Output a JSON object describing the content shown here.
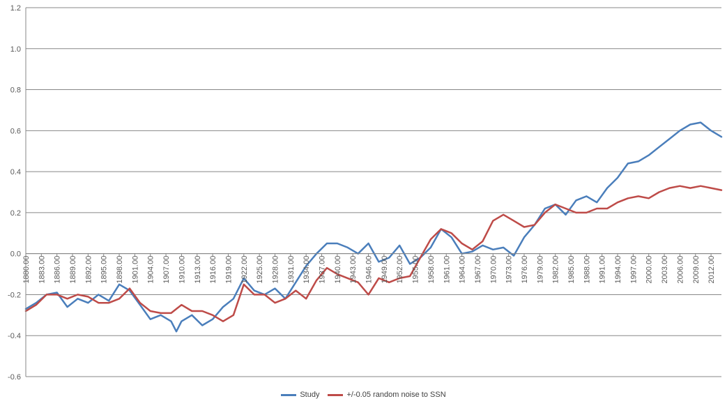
{
  "chart_data": {
    "type": "line",
    "title": "",
    "xlabel": "",
    "ylabel": "",
    "ylim": [
      -0.6,
      1.2
    ],
    "y_ticks": [
      "1.2",
      "1.0",
      "0.8",
      "0.6",
      "0.4",
      "0.2",
      "0.0",
      "-0.2",
      "-0.4",
      "-0.6"
    ],
    "y_tick_values": [
      1.2,
      1.0,
      0.8,
      0.6,
      0.4,
      0.2,
      0.0,
      -0.2,
      -0.4,
      -0.6
    ],
    "x_tick_labels": [
      "1880.00",
      "1883.00",
      "1886.00",
      "1889.00",
      "1892.00",
      "1895.00",
      "1898.00",
      "1901.00",
      "1904.00",
      "1907.00",
      "1910.00",
      "1913.00",
      "1916.00",
      "1919.00",
      "1922.00",
      "1925.00",
      "1928.00",
      "1931.00",
      "1934.00",
      "1937.00",
      "1940.00",
      "1943.00",
      "1946.00",
      "1949.00",
      "1952.00",
      "1955.00",
      "1958.00",
      "1961.00",
      "1964.00",
      "1967.00",
      "1970.00",
      "1973.00",
      "1976.00",
      "1979.00",
      "1982.00",
      "1985.00",
      "1988.00",
      "1991.00",
      "1994.00",
      "1997.00",
      "2000.00",
      "2003.00",
      "2006.00",
      "2009.00",
      "2012.00"
    ],
    "xlim": [
      1880,
      2014
    ],
    "grid": true,
    "legend_position": "bottom",
    "series": [
      {
        "name": "Study",
        "color": "#4a7ebb",
        "x": [
          1880,
          1882,
          1884,
          1886,
          1888,
          1890,
          1892,
          1894,
          1896,
          1898,
          1900,
          1902,
          1904,
          1906,
          1908,
          1909,
          1910,
          1912,
          1914,
          1916,
          1918,
          1920,
          1922,
          1924,
          1926,
          1928,
          1930,
          1932,
          1934,
          1936,
          1938,
          1940,
          1942,
          1944,
          1946,
          1948,
          1950,
          1952,
          1954,
          1956,
          1958,
          1960,
          1962,
          1964,
          1966,
          1968,
          1970,
          1972,
          1974,
          1976,
          1978,
          1980,
          1982,
          1984,
          1986,
          1988,
          1990,
          1992,
          1994,
          1996,
          1998,
          2000,
          2002,
          2004,
          2006,
          2008,
          2010,
          2012,
          2014
        ],
        "values": [
          -0.27,
          -0.24,
          -0.2,
          -0.19,
          -0.26,
          -0.22,
          -0.24,
          -0.2,
          -0.23,
          -0.15,
          -0.18,
          -0.25,
          -0.32,
          -0.3,
          -0.33,
          -0.38,
          -0.33,
          -0.3,
          -0.35,
          -0.32,
          -0.26,
          -0.22,
          -0.12,
          -0.18,
          -0.2,
          -0.17,
          -0.22,
          -0.14,
          -0.06,
          0.0,
          0.05,
          0.05,
          0.03,
          0.0,
          0.05,
          -0.04,
          -0.02,
          0.04,
          -0.05,
          -0.02,
          0.03,
          0.12,
          0.08,
          0.0,
          0.01,
          0.04,
          0.02,
          0.03,
          -0.01,
          0.08,
          0.14,
          0.22,
          0.24,
          0.19,
          0.26,
          0.28,
          0.25,
          0.32,
          0.37,
          0.44,
          0.45,
          0.48,
          0.52,
          0.56,
          0.6,
          0.63,
          0.64,
          0.6,
          0.57
        ]
      },
      {
        "name": "+/-0.05 random noise to SSN",
        "color": "#be4b48",
        "x": [
          1880,
          1882,
          1884,
          1886,
          1888,
          1890,
          1892,
          1894,
          1896,
          1898,
          1900,
          1902,
          1904,
          1906,
          1908,
          1910,
          1912,
          1914,
          1916,
          1918,
          1920,
          1922,
          1924,
          1926,
          1928,
          1930,
          1932,
          1934,
          1936,
          1938,
          1940,
          1942,
          1944,
          1946,
          1948,
          1950,
          1952,
          1954,
          1956,
          1958,
          1960,
          1962,
          1964,
          1966,
          1968,
          1970,
          1972,
          1974,
          1976,
          1978,
          1980,
          1982,
          1984,
          1986,
          1988,
          1990,
          1992,
          1994,
          1996,
          1998,
          2000,
          2002,
          2004,
          2006,
          2008,
          2010,
          2012,
          2014
        ],
        "values": [
          -0.28,
          -0.25,
          -0.2,
          -0.2,
          -0.22,
          -0.2,
          -0.21,
          -0.24,
          -0.24,
          -0.22,
          -0.17,
          -0.24,
          -0.28,
          -0.29,
          -0.29,
          -0.25,
          -0.28,
          -0.28,
          -0.3,
          -0.33,
          -0.3,
          -0.15,
          -0.2,
          -0.2,
          -0.24,
          -0.22,
          -0.18,
          -0.22,
          -0.13,
          -0.07,
          -0.1,
          -0.12,
          -0.14,
          -0.2,
          -0.12,
          -0.14,
          -0.12,
          -0.11,
          -0.02,
          0.07,
          0.12,
          0.1,
          0.05,
          0.02,
          0.06,
          0.16,
          0.19,
          0.16,
          0.13,
          0.14,
          0.2,
          0.24,
          0.22,
          0.2,
          0.2,
          0.22,
          0.22,
          0.25,
          0.27,
          0.28,
          0.27,
          0.3,
          0.32,
          0.33,
          0.32,
          0.33,
          0.32,
          0.31
        ]
      }
    ]
  }
}
